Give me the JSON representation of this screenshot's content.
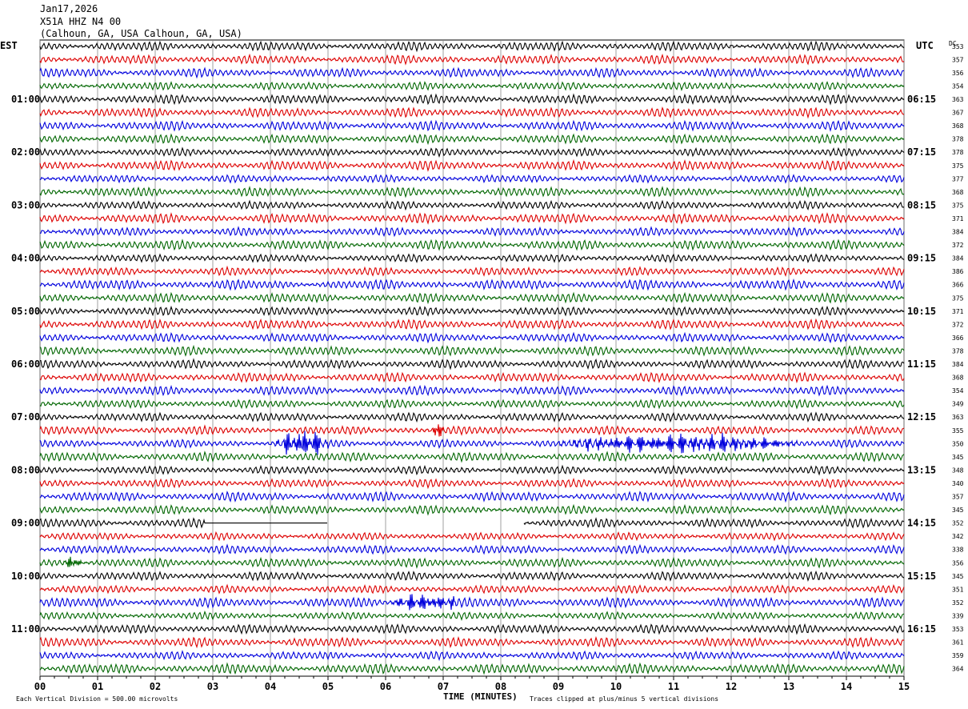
{
  "header": {
    "date": "Jan17,2026",
    "station": "X51A HHZ N4 00",
    "location": "(Calhoun, GA, USA Calhoun, GA, USA)"
  },
  "labels": {
    "left_tz": "EST",
    "right_tz": "UTC",
    "dc_header": "DC",
    "xlabel": "TIME (MINUTES)",
    "scale_note": "Each Vertical Division =  500.00 microvolts",
    "clip_note": "Traces clipped at plus/minus 5 vertical divisions"
  },
  "chart_data": {
    "type": "helicorder",
    "x_ticks": [
      "00",
      "01",
      "02",
      "03",
      "04",
      "05",
      "06",
      "07",
      "08",
      "09",
      "10",
      "11",
      "12",
      "13",
      "14",
      "15"
    ],
    "xlim": [
      0,
      15
    ],
    "trace_colors": [
      "#000000",
      "#dd0000",
      "#0000dd",
      "#006600"
    ],
    "left_hour_labels": [
      "01:00",
      "02:00",
      "03:00",
      "04:00",
      "05:00",
      "06:00",
      "07:00",
      "08:00",
      "09:00",
      "10:00",
      "11:00"
    ],
    "right_hour_labels": [
      "06:15",
      "07:15",
      "08:15",
      "09:15",
      "10:15",
      "11:15",
      "12:15",
      "13:15",
      "14:15",
      "15:15",
      "16:15"
    ],
    "dc_offsets": [
      353,
      357,
      356,
      354,
      363,
      367,
      368,
      378,
      378,
      375,
      377,
      368,
      375,
      371,
      384,
      372,
      384,
      386,
      366,
      375,
      371,
      372,
      366,
      378,
      384,
      368,
      354,
      349,
      363,
      355,
      350,
      345,
      348,
      340,
      357,
      345,
      352,
      342,
      338,
      356,
      345,
      351,
      352,
      339,
      353,
      361,
      359,
      364
    ],
    "events": [
      {
        "row": 30,
        "start_min": 4.1,
        "end_min": 5.0,
        "amp": 3.0,
        "label": "burst"
      },
      {
        "row": 30,
        "start_min": 9.0,
        "end_min": 13.2,
        "amp": 1.6,
        "label": "burst"
      },
      {
        "row": 29,
        "start_min": 6.8,
        "end_min": 7.0,
        "amp": 1.8,
        "label": "burst"
      },
      {
        "row": 42,
        "start_min": 6.1,
        "end_min": 7.3,
        "amp": 1.5,
        "label": "burst"
      },
      {
        "row": 39,
        "start_min": 0.4,
        "end_min": 0.8,
        "amp": 1.2,
        "label": "burst"
      }
    ],
    "gap": {
      "row": 36,
      "start_min": 2.85,
      "end_min": 5.0,
      "flat_until_min": 8.4
    }
  }
}
